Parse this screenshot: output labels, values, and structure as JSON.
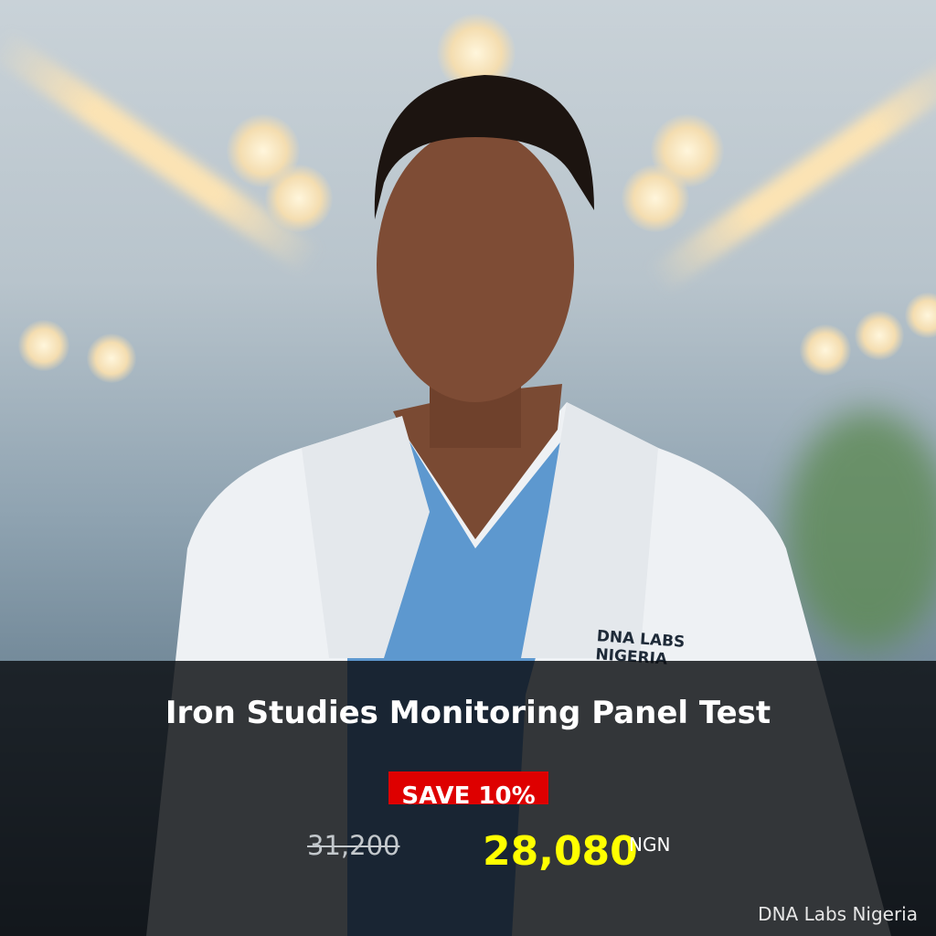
{
  "promo": {
    "title": "Iron Studies Monitoring Panel Test",
    "discount_badge": "SAVE 10%",
    "original_price": "31,200",
    "sale_price": "28,080",
    "currency": "NGN",
    "brand": "DNA Labs Nigeria",
    "coat_logo": "DNA LABS NIGERIA"
  },
  "colors": {
    "badge": "#de0000",
    "sale_price": "#ffff00",
    "overlay": "#0a0c10"
  }
}
